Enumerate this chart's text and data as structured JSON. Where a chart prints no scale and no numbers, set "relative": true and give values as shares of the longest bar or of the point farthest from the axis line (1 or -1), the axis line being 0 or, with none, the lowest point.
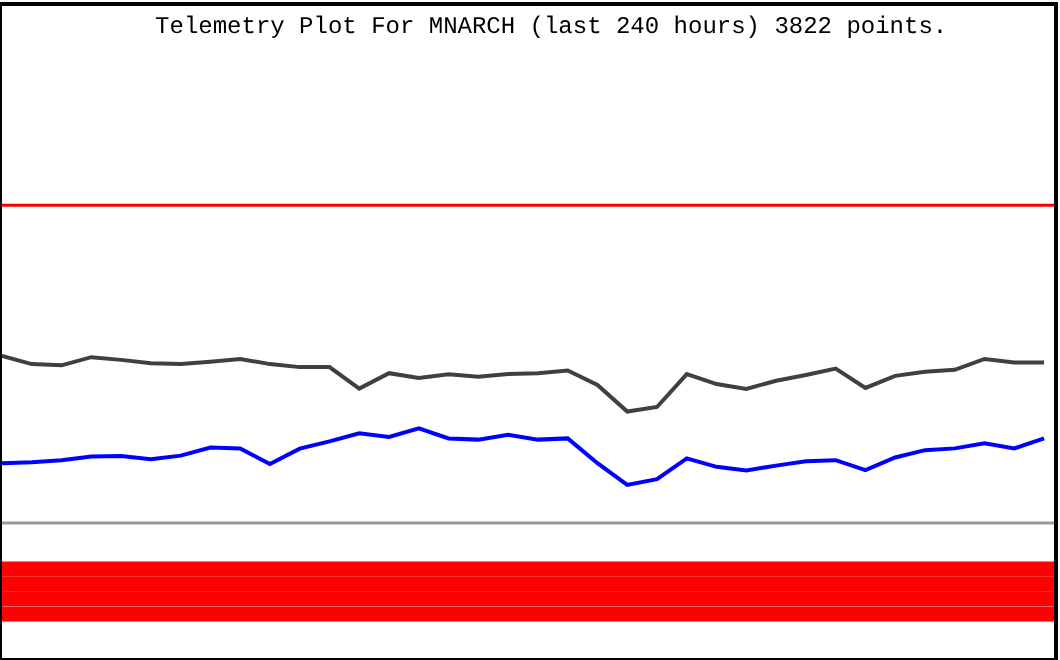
{
  "chart_data": {
    "type": "line",
    "title": "Telemetry Plot For MNARCH (last 240 hours) 3822 points.",
    "relative": true,
    "grid": false,
    "marker": "none",
    "line_style": "solid",
    "categories": [
      null,
      null,
      null,
      null,
      null,
      null,
      null,
      null,
      null,
      null,
      null,
      null,
      null,
      null,
      null,
      null,
      null,
      null,
      null,
      null,
      null,
      null,
      null,
      null,
      null,
      null,
      null,
      null,
      null,
      null,
      null,
      null,
      null,
      null,
      null,
      null
    ],
    "series": [
      {
        "color": "#404040",
        "values": [
          1.0,
          0.973,
          0.969,
          0.996,
          0.987,
          0.976,
          0.973,
          0.981,
          0.99,
          0.973,
          0.963,
          0.963,
          0.892,
          0.943,
          0.927,
          0.939,
          0.931,
          0.94,
          0.943,
          0.952,
          0.904,
          0.816,
          0.831,
          0.94,
          0.907,
          0.891,
          0.918,
          0.937,
          0.958,
          0.894,
          0.934,
          0.948,
          0.954,
          0.99,
          0.978,
          0.978
        ]
      },
      {
        "color": "#0000ff",
        "values": [
          0.645,
          0.648,
          0.655,
          0.667,
          0.669,
          0.658,
          0.67,
          0.697,
          0.694,
          0.642,
          0.693,
          0.717,
          0.744,
          0.732,
          0.76,
          0.727,
          0.723,
          0.739,
          0.723,
          0.727,
          0.645,
          0.573,
          0.592,
          0.661,
          0.633,
          0.621,
          0.637,
          0.651,
          0.655,
          0.622,
          0.664,
          0.688,
          0.694,
          0.711,
          0.694,
          0.727
        ]
      }
    ],
    "ref_lines": [
      {
        "axis": "y",
        "value": 1.499,
        "color": "#ff0000"
      },
      {
        "axis": "y",
        "value": 0.447,
        "color": "#999999"
      },
      {
        "axis": "y",
        "value": 0.307,
        "color": "#ff0000"
      },
      {
        "axis": "y",
        "value": 0.283,
        "color": "#ff0000"
      },
      {
        "axis": "y",
        "value": 0.258,
        "color": "#ff0000"
      },
      {
        "axis": "y",
        "value": 0.232,
        "color": "#ff0000"
      },
      {
        "axis": "y",
        "value": 0.208,
        "color": "#ff0000"
      },
      {
        "axis": "y",
        "value": 0.183,
        "color": "#ff0000"
      },
      {
        "axis": "y",
        "value": 0.157,
        "color": "#ff0000"
      },
      {
        "axis": "y",
        "value": 0.133,
        "color": "#ff0000"
      }
    ]
  }
}
